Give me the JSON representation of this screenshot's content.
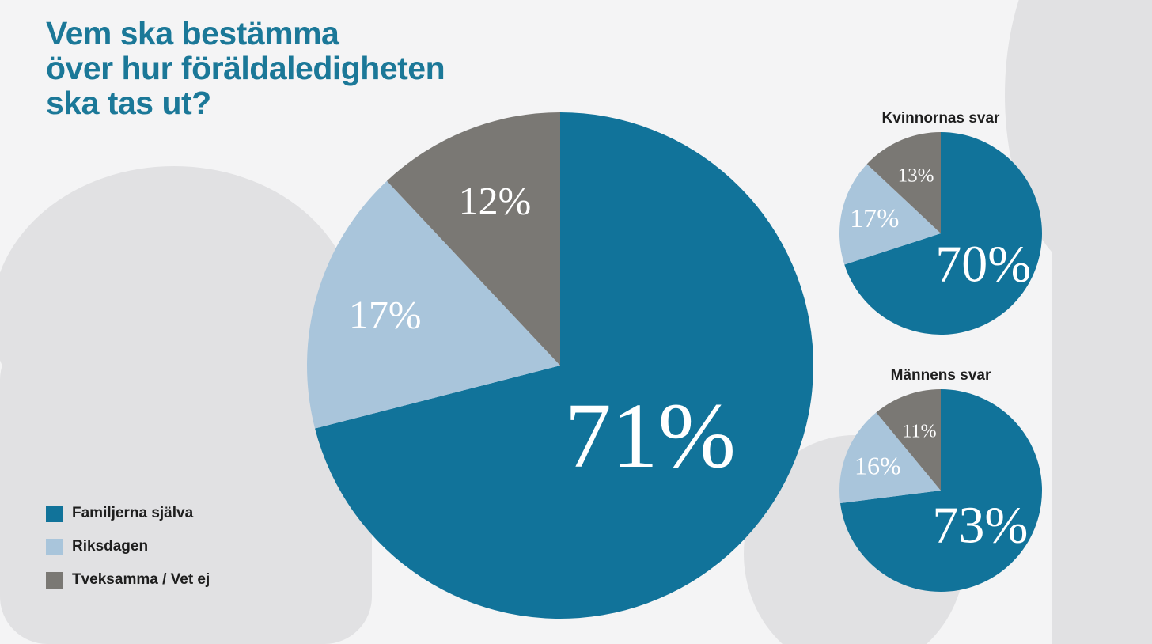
{
  "title_lines": [
    "Vem ska bestämma",
    "över hur föräldaledigheten",
    "ska tas ut?"
  ],
  "colors": {
    "familjer": "#11739a",
    "riksdagen": "#a9c5db",
    "tveksamma": "#7a7874"
  },
  "legend": [
    {
      "label": "Familjerna själva",
      "color": "#11739a"
    },
    {
      "label": "Riksdagen",
      "color": "#a9c5db"
    },
    {
      "label": "Tveksamma / Vet ej",
      "color": "#7a7874"
    }
  ],
  "chart_data": [
    {
      "type": "pie",
      "title": "",
      "categories": [
        "Familjerna själva",
        "Riksdagen",
        "Tveksamma / Vet ej"
      ],
      "values": [
        71,
        17,
        12
      ],
      "labels": [
        "71%",
        "17%",
        "12%"
      ]
    },
    {
      "type": "pie",
      "title": "Kvinnornas svar",
      "categories": [
        "Familjerna själva",
        "Riksdagen",
        "Tveksamma / Vet ej"
      ],
      "values": [
        70,
        17,
        13
      ],
      "labels": [
        "70%",
        "17%",
        "13%"
      ]
    },
    {
      "type": "pie",
      "title": "Männens svar",
      "categories": [
        "Familjerna själva",
        "Riksdagen",
        "Tveksamma / Vet ej"
      ],
      "values": [
        73,
        16,
        11
      ],
      "labels": [
        "73%",
        "16%",
        "11%"
      ]
    }
  ]
}
